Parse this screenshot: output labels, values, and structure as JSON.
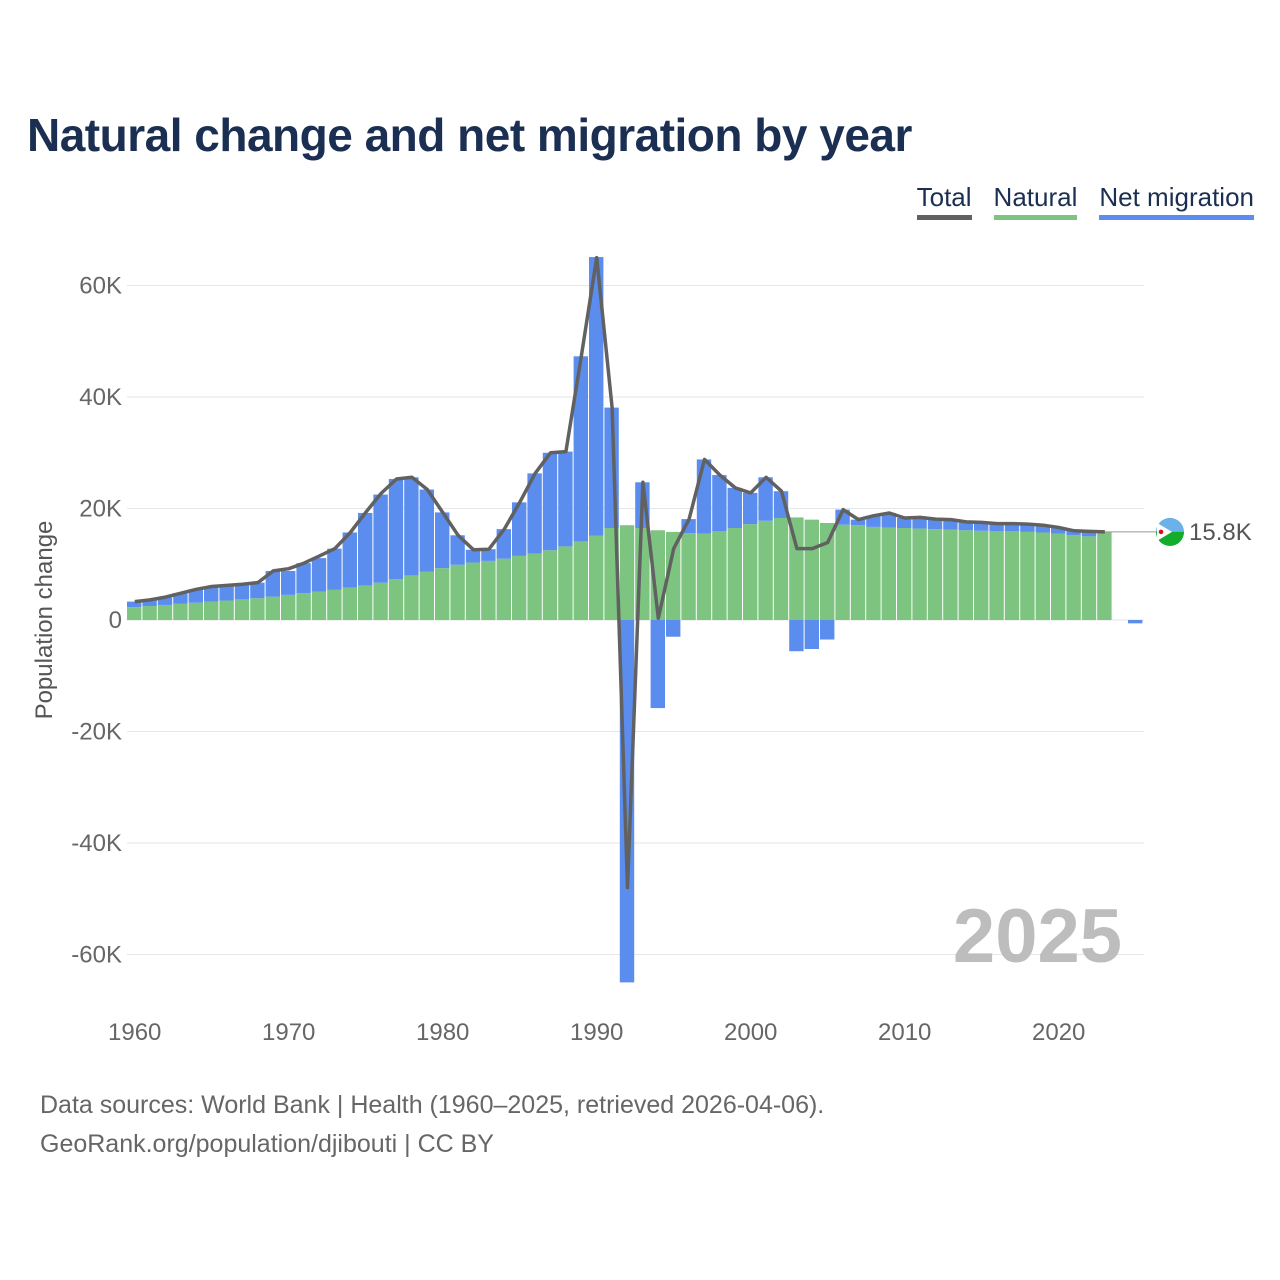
{
  "title": "Natural change and net migration by year",
  "legend": {
    "total": "Total",
    "natural": "Natural",
    "net_migration": "Net migration"
  },
  "footer": {
    "line1": "Data sources: World Bank | Health (1960–2025, retrieved 2026-04-06).",
    "line2": "GeoRank.org/population/djibouti | CC BY"
  },
  "colors": {
    "natural": "#7cc47f",
    "net_migration": "#5b8def",
    "total": "#616161",
    "title": "#1b2f52"
  },
  "chart_data": {
    "type": "bar",
    "stacked": true,
    "title": "Natural change and net migration by year",
    "ylabel": "Population change",
    "xlabel": "",
    "ylim": [
      -68000,
      68000
    ],
    "yticks": [
      60000,
      40000,
      20000,
      0,
      -20000,
      -40000,
      -60000
    ],
    "ytick_labels": [
      "60K",
      "40K",
      "20K",
      "0",
      "-20K",
      "-40K",
      "-60K"
    ],
    "xticks": [
      1960,
      1970,
      1980,
      1990,
      2000,
      2010,
      2020
    ],
    "xtick_labels": [
      "1960",
      "1970",
      "1980",
      "1990",
      "2000",
      "2010",
      "2020"
    ],
    "x": [
      1960,
      1961,
      1962,
      1963,
      1964,
      1965,
      1966,
      1967,
      1968,
      1969,
      1970,
      1971,
      1972,
      1973,
      1974,
      1975,
      1976,
      1977,
      1978,
      1979,
      1980,
      1981,
      1982,
      1983,
      1984,
      1985,
      1986,
      1987,
      1988,
      1989,
      1990,
      1991,
      1992,
      1993,
      1994,
      1995,
      1996,
      1997,
      1998,
      1999,
      2000,
      2001,
      2002,
      2003,
      2004,
      2005,
      2006,
      2007,
      2008,
      2009,
      2010,
      2011,
      2012,
      2013,
      2014,
      2015,
      2016,
      2017,
      2018,
      2019,
      2020,
      2021,
      2022,
      2023,
      2024,
      2025
    ],
    "series": [
      {
        "name": "Natural",
        "values": [
          2300,
          2500,
          2700,
          2900,
          3100,
          3300,
          3500,
          3700,
          3900,
          4200,
          4500,
          4800,
          5100,
          5400,
          5800,
          6200,
          6700,
          7300,
          8000,
          8700,
          9300,
          9900,
          10300,
          10600,
          11000,
          11500,
          11900,
          12500,
          13200,
          14100,
          15100,
          16500,
          17000,
          16500,
          16100,
          15800,
          15600,
          15500,
          15900,
          16500,
          17200,
          17800,
          18300,
          18400,
          18000,
          17400,
          17100,
          17000,
          16700,
          16600,
          16500,
          16400,
          16300,
          16200,
          16100,
          16000,
          15900,
          15900,
          15800,
          15700,
          15500,
          15200,
          15000,
          15800,
          0,
          0
        ]
      },
      {
        "name": "Net migration",
        "values": [
          1000,
          1100,
          1400,
          1900,
          2400,
          2700,
          2700,
          2700,
          2800,
          4600,
          4300,
          5400,
          6000,
          7400,
          9900,
          13000,
          15800,
          18000,
          17600,
          14700,
          10000,
          5300,
          2300,
          2100,
          5300,
          9600,
          14400,
          17500,
          17000,
          33200,
          50000,
          21600,
          -65000,
          8200,
          -15800,
          -3000,
          2500,
          13300,
          10100,
          7200,
          5600,
          7800,
          4800,
          -5600,
          -5200,
          -3500,
          2700,
          1000,
          2000,
          2600,
          1800,
          2000,
          1800,
          1800,
          1500,
          1500,
          1400,
          1400,
          1400,
          1300,
          1100,
          800,
          900,
          0,
          0,
          -600
        ]
      },
      {
        "name": "Total",
        "values": [
          3300,
          3600,
          4100,
          4800,
          5500,
          6000,
          6200,
          6400,
          6700,
          8800,
          9200,
          10200,
          11500,
          12800,
          15700,
          19300,
          22700,
          25300,
          25600,
          23400,
          19300,
          15200,
          12600,
          12700,
          16300,
          21100,
          26300,
          30000,
          30200,
          47300,
          65000,
          38100,
          -48000,
          24700,
          300,
          12800,
          18100,
          28800,
          26000,
          23700,
          22800,
          25600,
          23100,
          12800,
          12800,
          13900,
          19800,
          18000,
          18700,
          19200,
          18300,
          18400,
          18100,
          18000,
          17600,
          17500,
          17300,
          17300,
          17200,
          17000,
          16600,
          16000,
          15900,
          15800,
          null,
          null
        ]
      }
    ],
    "end_label": "15.8K",
    "watermark_year": "2025"
  }
}
